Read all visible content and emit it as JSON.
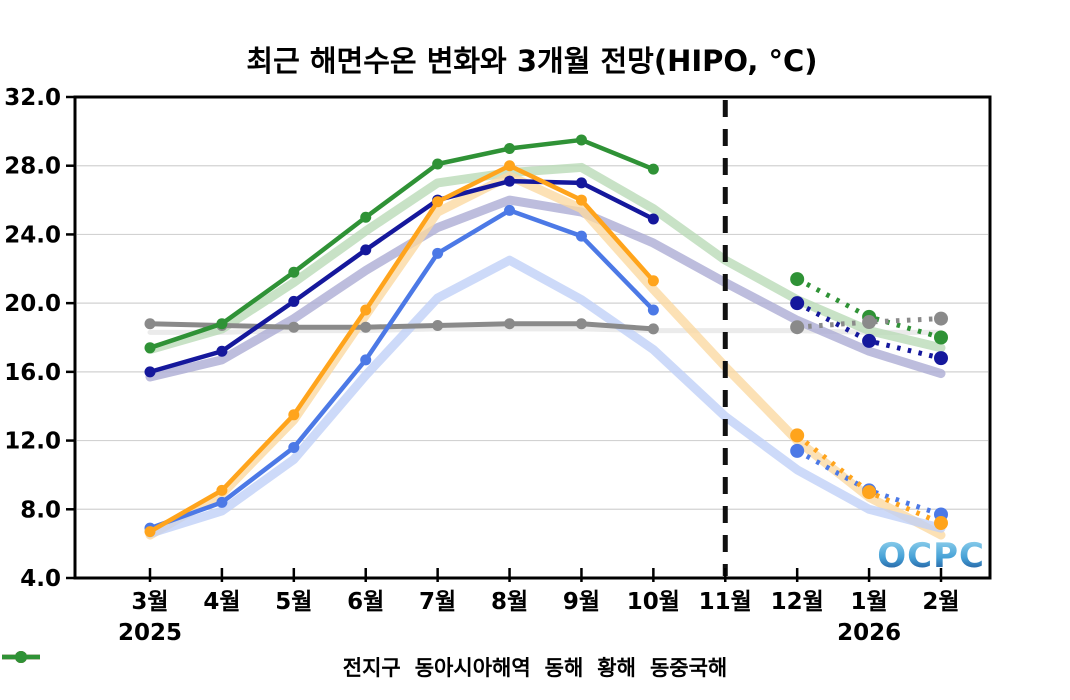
{
  "chart": {
    "title": "최근 해면수온 변화와 3개월 전망(HIPO, °C)",
    "watermark": "OCPC"
  },
  "chart_data": {
    "type": "line",
    "title": "최근 해면수온 변화와 3개월 전망(HIPO, °C)",
    "x_tick_labels": [
      "3월",
      "4월",
      "5월",
      "6월",
      "7월",
      "8월",
      "9월",
      "10월",
      "11월",
      "12월",
      "1월",
      "2월"
    ],
    "year_labels": [
      {
        "text": "2025",
        "month_index": 0
      },
      {
        "text": "2026",
        "month_index": 10
      }
    ],
    "ylim": [
      4.0,
      32.0
    ],
    "y_tick_step": 4.0,
    "y_tick_labels": [
      "4.0",
      "8.0",
      "12.0",
      "16.0",
      "20.0",
      "24.0",
      "28.0",
      "32.0"
    ],
    "grid": "horizontal",
    "forecast_divider_month_index": 8,
    "legend_position": "bottom",
    "series": [
      {
        "name": "전지구",
        "color": "#8a8a8a",
        "observed_months": [
          "3월",
          "4월",
          "5월",
          "6월",
          "7월",
          "8월",
          "9월",
          "10월"
        ],
        "observed": [
          18.8,
          18.7,
          18.6,
          18.6,
          18.7,
          18.8,
          18.8,
          18.5
        ],
        "forecast_months": [
          "12월",
          "1월",
          "2월"
        ],
        "forecast": [
          18.6,
          18.9,
          19.1
        ]
      },
      {
        "name": "동아시아해역",
        "color": "#15189c",
        "observed_months": [
          "3월",
          "4월",
          "5월",
          "6월",
          "7월",
          "8월",
          "9월",
          "10월"
        ],
        "observed": [
          16.0,
          17.2,
          20.1,
          23.1,
          26.0,
          27.1,
          27.0,
          24.9
        ],
        "forecast_months": [
          "12월",
          "1월",
          "2월"
        ],
        "forecast": [
          20.0,
          17.8,
          16.8
        ]
      },
      {
        "name": "동해",
        "color": "#4c79e6",
        "observed_months": [
          "3월",
          "4월",
          "5월",
          "6월",
          "7월",
          "8월",
          "9월",
          "10월"
        ],
        "observed": [
          6.9,
          8.4,
          11.6,
          16.7,
          22.9,
          25.4,
          23.9,
          19.6
        ],
        "forecast_months": [
          "12월",
          "1월",
          "2월"
        ],
        "forecast": [
          11.4,
          9.1,
          7.7
        ]
      },
      {
        "name": "황해",
        "color": "#ffa41c",
        "observed_months": [
          "3월",
          "4월",
          "5월",
          "6월",
          "7월",
          "8월",
          "9월",
          "10월"
        ],
        "observed": [
          6.7,
          9.1,
          13.5,
          19.6,
          25.9,
          28.0,
          26.0,
          21.3
        ],
        "forecast_months": [
          "12월",
          "1월",
          "2월"
        ],
        "forecast": [
          12.3,
          9.0,
          7.2
        ]
      },
      {
        "name": "동중국해",
        "color": "#2f9236",
        "observed_months": [
          "3월",
          "4월",
          "5월",
          "6월",
          "7월",
          "8월",
          "9월",
          "10월"
        ],
        "observed": [
          17.4,
          18.8,
          21.8,
          25.0,
          28.1,
          29.0,
          29.5,
          27.8
        ],
        "forecast_months": [
          "12월",
          "1월",
          "2월"
        ],
        "forecast": [
          21.4,
          19.2,
          18.0
        ]
      }
    ],
    "climatology_bands": [
      {
        "name": "전지구",
        "color": "#e6e6e6",
        "width": 5,
        "values": [
          18.3,
          18.3,
          18.4,
          18.4,
          18.5,
          18.5,
          18.5,
          18.4,
          18.4,
          18.4,
          18.3,
          18.3
        ]
      },
      {
        "name": "동중국해",
        "color": "#b9dab6",
        "width": 9,
        "values": [
          17.3,
          18.5,
          21.2,
          24.2,
          27.0,
          27.6,
          27.9,
          25.5,
          22.5,
          20.2,
          18.4,
          17.4
        ]
      },
      {
        "name": "동아시아해역",
        "color": "#abaad3",
        "width": 9,
        "values": [
          15.7,
          16.7,
          19.1,
          21.9,
          24.4,
          26.0,
          25.3,
          23.5,
          21.2,
          19.0,
          17.2,
          15.9
        ]
      },
      {
        "name": "황해",
        "color": "#fbd9a0",
        "width": 9,
        "values": [
          6.5,
          8.9,
          13.2,
          19.3,
          25.3,
          27.4,
          25.5,
          20.8,
          16.3,
          12.0,
          8.7,
          6.5
        ]
      },
      {
        "name": "동해",
        "color": "#bfcff7",
        "width": 9,
        "values": [
          6.6,
          7.9,
          10.9,
          15.8,
          20.3,
          22.5,
          20.2,
          17.3,
          13.4,
          10.3,
          8.0,
          6.9
        ]
      }
    ]
  }
}
